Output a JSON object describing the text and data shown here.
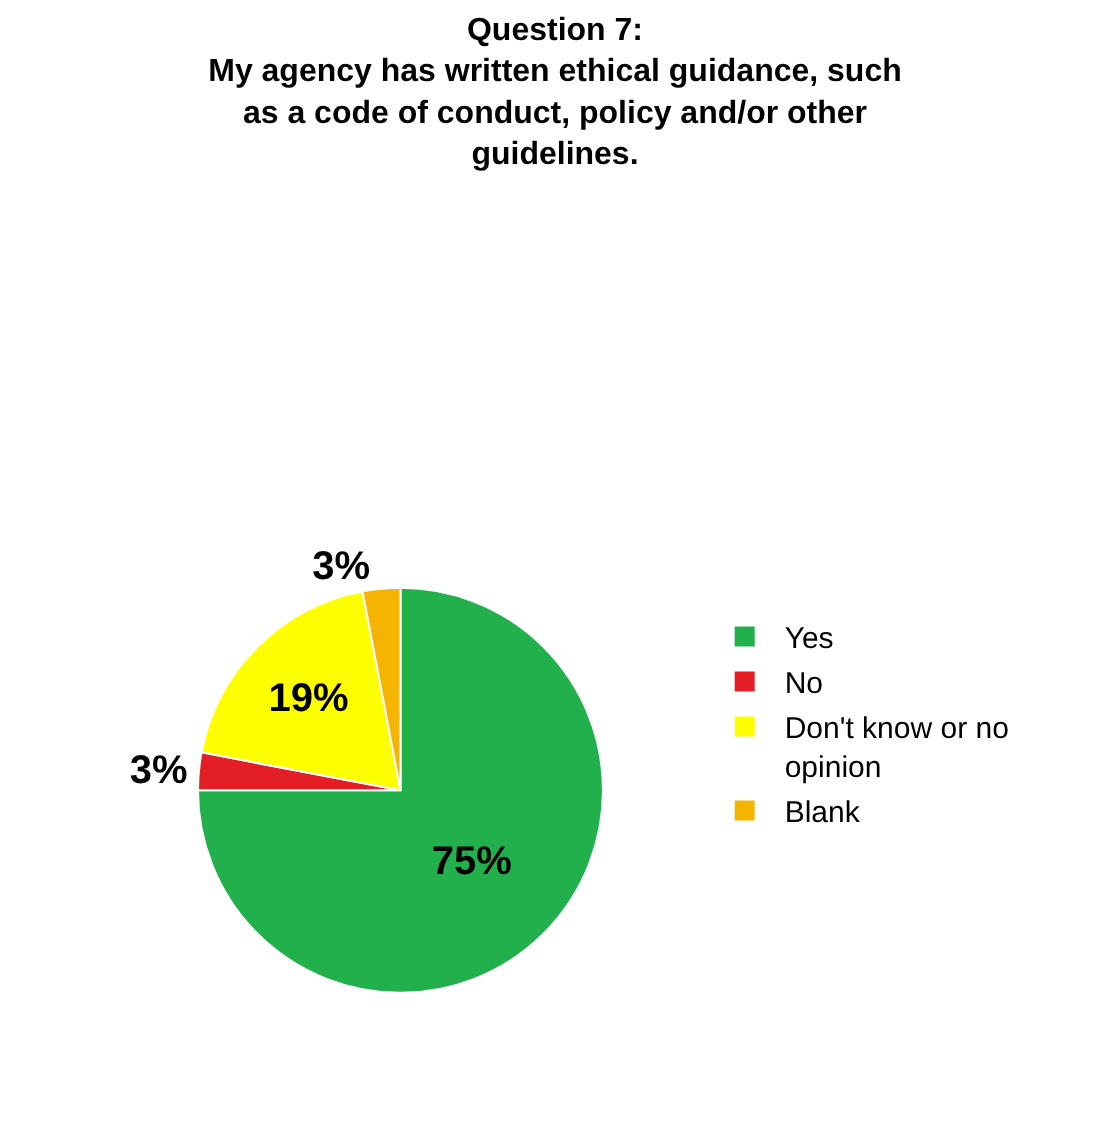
{
  "chart_data": {
    "type": "pie",
    "title": "Question 7:\nMy agency has written ethical guidance, such\nas a code of conduct, policy and/or other\nguidelines.",
    "categories": [
      "Yes",
      "No",
      "Don't know or no opinion",
      "Blank"
    ],
    "values": [
      75,
      3,
      19,
      3
    ],
    "value_labels": [
      "75%",
      "3%",
      "19%",
      "3%"
    ],
    "colors": [
      "#21b04b",
      "#e31e24",
      "#ffff00",
      "#f5b400"
    ],
    "legend": "right"
  }
}
